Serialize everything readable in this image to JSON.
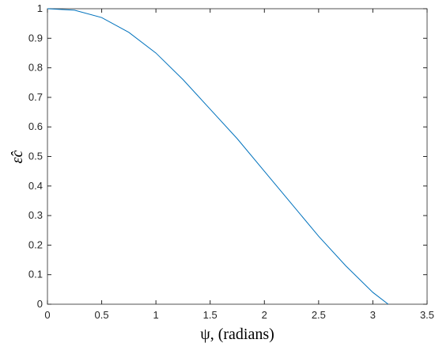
{
  "chart_data": {
    "type": "line",
    "xlabel": "ψ, (radians)",
    "ylabel": "ε̂c",
    "x": [
      0,
      0.25,
      0.5,
      0.75,
      1,
      1.25,
      1.5,
      1.75,
      2,
      2.25,
      2.5,
      2.75,
      3,
      3.1416
    ],
    "series": [
      {
        "color": "#0072bd",
        "values": [
          1,
          0.995,
          0.97,
          0.92,
          0.85,
          0.76,
          0.66,
          0.56,
          0.45,
          0.34,
          0.23,
          0.13,
          0.04,
          0
        ]
      }
    ],
    "xlim": [
      0,
      3.5
    ],
    "xticks": [
      0,
      0.5,
      1,
      1.5,
      2,
      2.5,
      3,
      3.5
    ],
    "ylim": [
      0,
      1
    ],
    "yticks": [
      0,
      0.1,
      0.2,
      0.3,
      0.4,
      0.5,
      0.6,
      0.7,
      0.8,
      0.9,
      1
    ],
    "grid": false
  }
}
